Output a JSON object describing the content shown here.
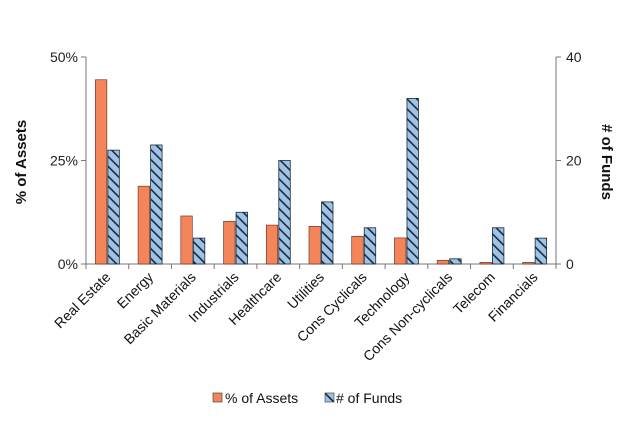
{
  "chart_data": {
    "type": "bar",
    "categories": [
      "Real Estate",
      "Energy",
      "Basic Materials",
      "Industrials",
      "Healthcare",
      "Utilities",
      "Cons Cyclicals",
      "Technology",
      "Cons Non-cyclicals",
      "Telecom",
      "Financials"
    ],
    "series": [
      {
        "name": "% of Assets",
        "axis": "left",
        "color": "#f4845a",
        "values": [
          44.5,
          18.8,
          11.6,
          10.3,
          9.4,
          9.1,
          6.7,
          6.3,
          0.9,
          0.4,
          0.4
        ]
      },
      {
        "name": "# of Funds",
        "axis": "right",
        "color": "#9ec3e6",
        "pattern": "diagonal-hatch",
        "values": [
          22,
          23,
          5,
          10,
          20,
          12,
          7,
          32,
          1,
          7,
          5
        ]
      }
    ],
    "y_left": {
      "label": "% of Assets",
      "ylim": [
        0,
        50
      ],
      "ticks": [
        "0%",
        "25%",
        "50%"
      ],
      "tick_values": [
        0,
        25,
        50
      ]
    },
    "y_right": {
      "label": "# of Funds",
      "ylim": [
        0,
        40
      ],
      "ticks": [
        "0",
        "20",
        "40"
      ],
      "tick_values": [
        0,
        20,
        40
      ]
    },
    "grid": false,
    "legend": "bottom"
  }
}
